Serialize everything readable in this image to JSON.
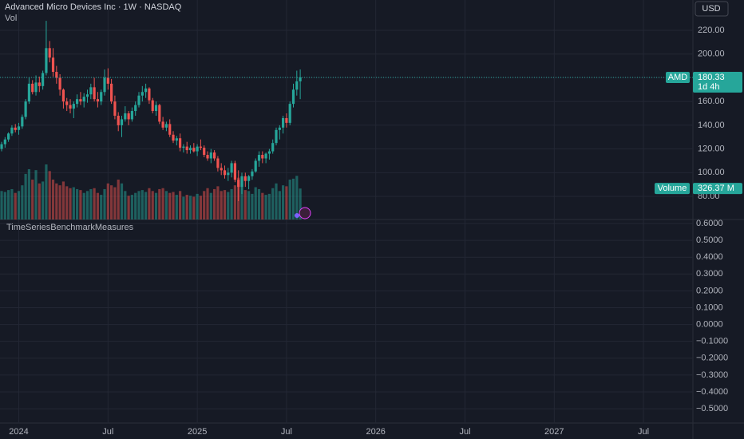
{
  "chart_data": [
    {
      "type": "candlestick",
      "title": "Advanced Micro Devices Inc · 1W · NASDAQ",
      "subtitle": "Vol",
      "currency": "USD",
      "price_tag": {
        "name": "AMD",
        "value": 180.33,
        "countdown": "1d 4h"
      },
      "volume_tag": {
        "name": "Volume",
        "value": 326.37,
        "label": "326.37 M"
      },
      "up_color": "#26a69a",
      "down_color": "#ef5350",
      "open": [
        120,
        124,
        128,
        133,
        138,
        136,
        139,
        147,
        160,
        175,
        168,
        176,
        173,
        184,
        205,
        197,
        185,
        180,
        170,
        160,
        157,
        154,
        158,
        162,
        160,
        164,
        166,
        172,
        162,
        160,
        168,
        180,
        175,
        160,
        148,
        140,
        145,
        150,
        145,
        152,
        157,
        165,
        168,
        171,
        161,
        152,
        157,
        143,
        138,
        141,
        132,
        127,
        129,
        121,
        122,
        119,
        121,
        118,
        122,
        121,
        115,
        112,
        117,
        112,
        104,
        102,
        98,
        100,
        108,
        94,
        88,
        97,
        93,
        97,
        101,
        110,
        115,
        112,
        116,
        118,
        125,
        136,
        138,
        146,
        142,
        158,
        170,
        177
      ],
      "high": [
        126,
        130,
        134,
        140,
        141,
        142,
        149,
        162,
        180,
        178,
        182,
        181,
        186,
        228,
        211,
        205,
        190,
        183,
        171,
        163,
        162,
        160,
        166,
        168,
        167,
        170,
        175,
        180,
        168,
        170,
        187,
        188,
        179,
        165,
        151,
        148,
        156,
        152,
        155,
        160,
        168,
        173,
        175,
        172,
        163,
        160,
        158,
        147,
        143,
        145,
        135,
        131,
        133,
        124,
        126,
        123,
        125,
        124,
        128,
        123,
        118,
        120,
        119,
        114,
        108,
        106,
        104,
        110,
        110,
        102,
        100,
        100,
        98,
        103,
        112,
        118,
        118,
        117,
        120,
        128,
        138,
        140,
        148,
        150,
        160,
        175,
        186,
        187
      ],
      "low": [
        118,
        121,
        126,
        131,
        134,
        132,
        137,
        145,
        158,
        166,
        165,
        168,
        170,
        182,
        193,
        181,
        175,
        165,
        154,
        152,
        150,
        146,
        155,
        157,
        155,
        159,
        162,
        160,
        155,
        157,
        165,
        170,
        158,
        145,
        135,
        130,
        143,
        140,
        143,
        148,
        155,
        160,
        163,
        158,
        150,
        148,
        141,
        136,
        135,
        130,
        125,
        123,
        118,
        117,
        116,
        116,
        117,
        114,
        119,
        113,
        110,
        108,
        110,
        101,
        98,
        95,
        93,
        96,
        92,
        76,
        82,
        88,
        86,
        94,
        100,
        105,
        108,
        108,
        111,
        116,
        123,
        128,
        133,
        138,
        140,
        155,
        165,
        162
      ],
      "close": [
        124,
        128,
        133,
        138,
        136,
        139,
        147,
        160,
        175,
        168,
        176,
        173,
        184,
        205,
        197,
        185,
        180,
        170,
        160,
        157,
        154,
        158,
        162,
        160,
        164,
        166,
        172,
        162,
        160,
        168,
        180,
        175,
        160,
        148,
        140,
        145,
        150,
        145,
        152,
        157,
        165,
        168,
        171,
        161,
        152,
        157,
        143,
        138,
        141,
        132,
        127,
        129,
        121,
        122,
        119,
        121,
        118,
        122,
        121,
        115,
        112,
        117,
        112,
        104,
        102,
        98,
        100,
        108,
        94,
        88,
        97,
        93,
        97,
        101,
        110,
        115,
        112,
        116,
        118,
        125,
        136,
        138,
        146,
        142,
        158,
        170,
        177,
        180.33
      ],
      "volume": [
        300,
        290,
        310,
        320,
        280,
        300,
        360,
        480,
        530,
        420,
        520,
        380,
        400,
        580,
        510,
        420,
        380,
        360,
        400,
        350,
        330,
        340,
        320,
        310,
        280,
        300,
        320,
        330,
        280,
        260,
        320,
        380,
        360,
        340,
        420,
        380,
        300,
        250,
        260,
        280,
        300,
        310,
        290,
        330,
        300,
        280,
        320,
        330,
        300,
        280,
        290,
        260,
        300,
        240,
        260,
        250,
        240,
        270,
        250,
        300,
        330,
        280,
        320,
        350,
        300,
        310,
        290,
        320,
        360,
        440,
        380,
        310,
        300,
        270,
        340,
        320,
        280,
        260,
        270,
        330,
        380,
        300,
        360,
        350,
        420,
        430,
        460,
        326.37
      ],
      "ylim": [
        60.51,
        245.57
      ],
      "yticks": [
        {
          "value": 80,
          "label": "80.00"
        },
        {
          "value": 100,
          "label": "100.00"
        },
        {
          "value": 120,
          "label": "120.00"
        },
        {
          "value": 140,
          "label": "140.00"
        },
        {
          "value": 160,
          "label": "160.00"
        },
        {
          "value": 180,
          "label": "180.00"
        },
        {
          "value": 200,
          "label": "200.00"
        },
        {
          "value": 220,
          "label": "220.00"
        }
      ],
      "xlim": [
        -0.47,
        201.4
      ],
      "xticks": [
        {
          "value": 5,
          "label": "2024"
        },
        {
          "value": 31,
          "label": "Jul"
        },
        {
          "value": 57,
          "label": "2025"
        },
        {
          "value": 83,
          "label": "Jul"
        },
        {
          "value": 109,
          "label": "2026"
        },
        {
          "value": 135,
          "label": "Jul"
        },
        {
          "value": 161,
          "label": "2027"
        },
        {
          "value": 187,
          "label": "Jul"
        }
      ],
      "grid": true
    },
    {
      "type": "indicator",
      "title": "TimeSeriesBenchmarkMeasures",
      "ylim": [
        -0.585,
        0.6237
      ],
      "yticks": [
        {
          "value": 0.6,
          "label": "0.6000"
        },
        {
          "value": 0.5,
          "label": "0.5000"
        },
        {
          "value": 0.4,
          "label": "0.4000"
        },
        {
          "value": 0.3,
          "label": "0.3000"
        },
        {
          "value": 0.2,
          "label": "0.2000"
        },
        {
          "value": 0.1,
          "label": "0.1000"
        },
        {
          "value": 0,
          "label": "0.0000"
        },
        {
          "value": -0.1,
          "label": "−0.1000"
        },
        {
          "value": -0.2,
          "label": "−0.2000"
        },
        {
          "value": -0.3,
          "label": "−0.3000"
        },
        {
          "value": -0.4,
          "label": "−0.4000"
        },
        {
          "value": -0.5,
          "label": "−0.5000"
        }
      ],
      "grid": true
    }
  ]
}
